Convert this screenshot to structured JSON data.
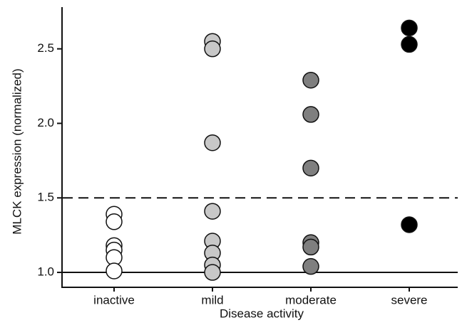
{
  "chart_data": {
    "type": "strip",
    "x_label": "Disease activity",
    "y_label": "MLCK expression (normalized)",
    "categories": [
      "inactive",
      "mild",
      "moderate",
      "severe"
    ],
    "values": [
      [
        1.39,
        1.34,
        1.18,
        1.15,
        1.1,
        1.01
      ],
      [
        2.55,
        2.5,
        1.87,
        1.41,
        1.21,
        1.13,
        1.05,
        1.0
      ],
      [
        2.29,
        2.06,
        1.7,
        1.2,
        1.17,
        1.04
      ],
      [
        2.64,
        2.53,
        1.32
      ]
    ],
    "colors": [
      "#ffffff",
      "#c8c8c8",
      "#7f7f7f",
      "#000000"
    ],
    "ylim": [
      0.9,
      2.78
    ],
    "yticks": [
      {
        "value": 1,
        "label": "1.0"
      },
      {
        "value": 1.5,
        "label": "1.5"
      },
      {
        "value": 2,
        "label": "2.0"
      },
      {
        "value": 2.5,
        "label": "2.5"
      }
    ],
    "hlines": [
      {
        "value": 1,
        "style": "solid"
      },
      {
        "value": 1.5,
        "style": "dashed"
      }
    ]
  }
}
